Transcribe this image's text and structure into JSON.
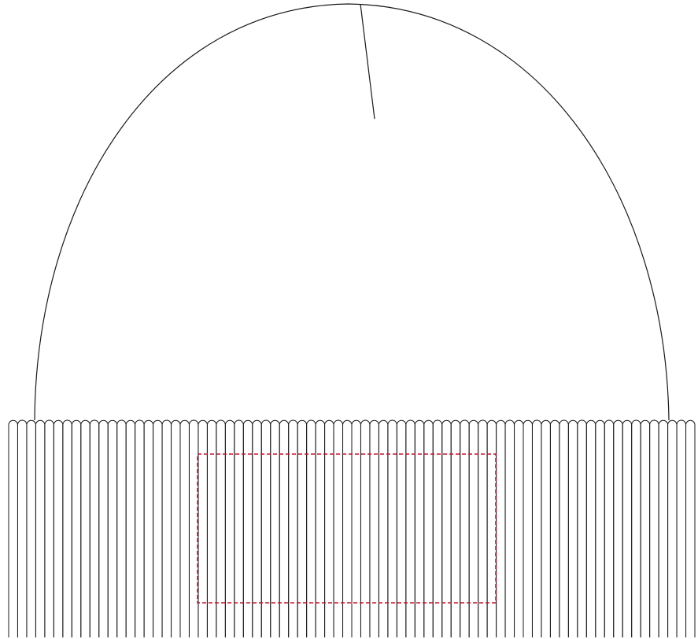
{
  "drawing": {
    "stroke_color": "#1a1a1a",
    "background_color": "#ffffff",
    "print_area_color": "#c8102e",
    "cuff_rib_count": 76
  }
}
